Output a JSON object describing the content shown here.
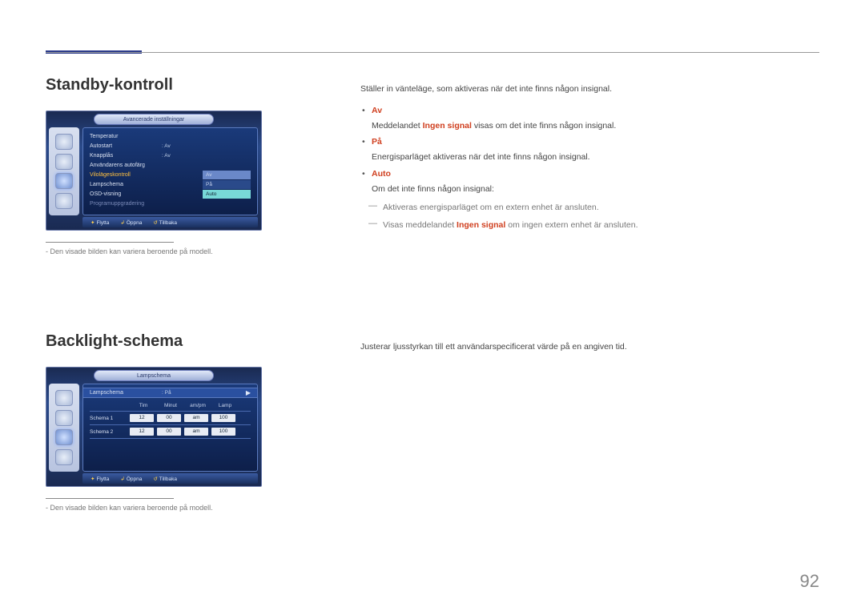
{
  "page_number": "92",
  "section1": {
    "heading": "Standby-kontroll",
    "osd": {
      "title": "Avancerade inställningar",
      "rows": [
        {
          "label": "Temperatur",
          "value": ""
        },
        {
          "label": "Autostart",
          "value": ": Av"
        },
        {
          "label": "Knapplås",
          "value": ": Av"
        },
        {
          "label": "Användarens autofärg",
          "value": ""
        }
      ],
      "selected_label": "Vilolägeskontroll",
      "options": [
        "Av",
        "På",
        "Auto"
      ],
      "tail_rows": [
        "Lampschema",
        "OSD-visning",
        "Programuppgradering"
      ],
      "footer": {
        "move": "Flytta",
        "open": "Öppna",
        "back": "Tillbaka"
      }
    },
    "footnote": "Den visade bilden kan variera beroende på modell.",
    "body": {
      "intro": "Ställer in vänteläge, som aktiveras när det inte finns någon insignal.",
      "items": [
        {
          "name": "Av",
          "desc_pre": "Meddelandet ",
          "desc_bold": "Ingen signal",
          "desc_post": " visas om det inte finns någon insignal."
        },
        {
          "name": "På",
          "desc": "Energisparläget aktiveras när det inte finns någon insignal."
        },
        {
          "name": "Auto",
          "desc": "Om det inte finns någon insignal:"
        }
      ],
      "sub": [
        "Aktiveras energisparläget om en extern enhet är ansluten.",
        {
          "pre": "Visas meddelandet ",
          "bold": "Ingen signal",
          "post": " om ingen extern enhet är ansluten."
        }
      ]
    }
  },
  "section2": {
    "heading": "Backlight-schema",
    "osd": {
      "title": "Lampschema",
      "main": {
        "label": "Lampschema",
        "value": ": På"
      },
      "cols": [
        "Tim",
        "Minut",
        "am/pm",
        "Lamp"
      ],
      "rows": [
        {
          "label": "Schema 1",
          "cells": [
            "12",
            "00",
            "am",
            "100"
          ]
        },
        {
          "label": "Schema 2",
          "cells": [
            "12",
            "00",
            "am",
            "100"
          ]
        }
      ],
      "footer": {
        "move": "Flytta",
        "open": "Öppna",
        "back": "Tillbaka"
      }
    },
    "footnote": "Den visade bilden kan variera beroende på modell.",
    "body": {
      "intro": "Justerar ljusstyrkan till ett användarspecificerat värde på en angiven tid."
    }
  }
}
